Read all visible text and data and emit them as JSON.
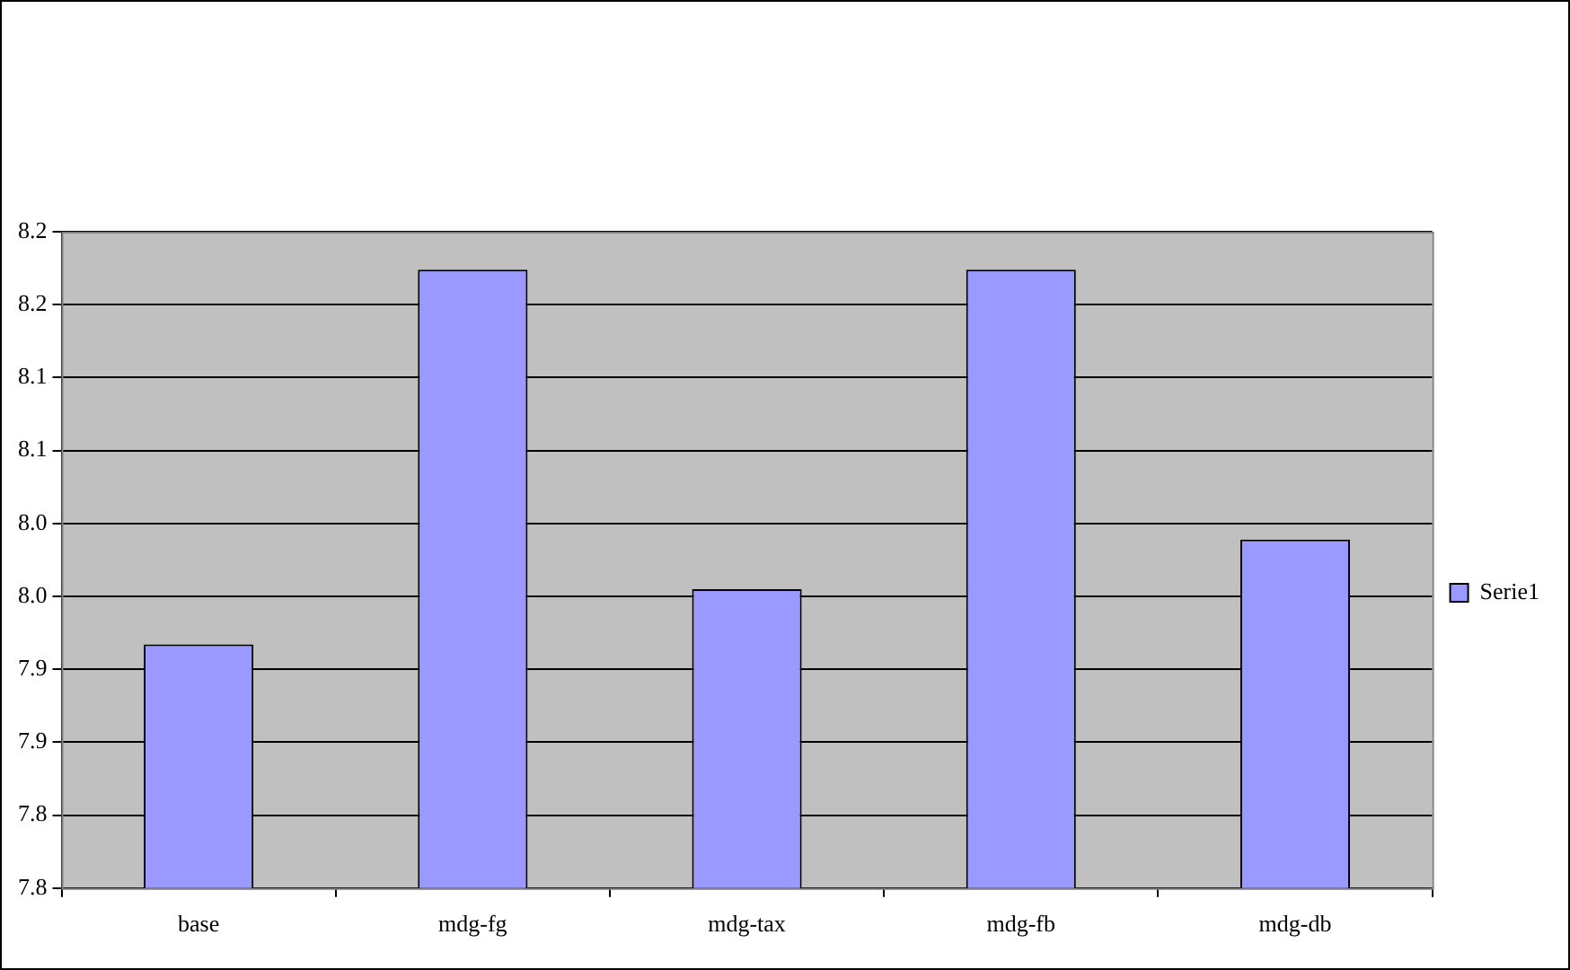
{
  "chart_data": {
    "type": "bar",
    "categories": [
      "base",
      "mdg-fg",
      "mdg-tax",
      "mdg-fb",
      "mdg-db"
    ],
    "series": [
      {
        "name": "Serie1",
        "color": "#9999ff",
        "values": [
          7.917,
          8.174,
          7.955,
          8.174,
          7.989
        ]
      }
    ],
    "ylim": [
      7.75,
      8.2
    ],
    "yticks": [
      {
        "value": 7.75,
        "label": "7.8"
      },
      {
        "value": 7.8,
        "label": "7.8"
      },
      {
        "value": 7.85,
        "label": "7.9"
      },
      {
        "value": 7.9,
        "label": "7.9"
      },
      {
        "value": 7.95,
        "label": "8.0"
      },
      {
        "value": 8.0,
        "label": "8.0"
      },
      {
        "value": 8.05,
        "label": "8.1"
      },
      {
        "value": 8.1,
        "label": "8.1"
      },
      {
        "value": 8.15,
        "label": "8.2"
      },
      {
        "value": 8.2,
        "label": "8.2"
      }
    ],
    "grid": "y",
    "legend": "right"
  }
}
